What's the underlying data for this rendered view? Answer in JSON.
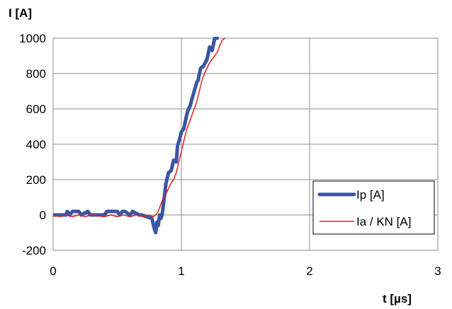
{
  "chart_data": {
    "type": "line",
    "ylabel": "I  [A]",
    "xlabel": "t  [µs]",
    "xlim": [
      0,
      3
    ],
    "ylim": [
      -200,
      1000
    ],
    "x_ticks": [
      0,
      1,
      2,
      3
    ],
    "y_ticks": [
      -200,
      0,
      200,
      400,
      600,
      800,
      1000
    ],
    "x_tick_labels": [
      "0",
      "1",
      "2",
      "3"
    ],
    "y_tick_labels": [
      "-200",
      "0",
      "200",
      "400",
      "600",
      "800",
      "1000"
    ],
    "grid": true,
    "legend_position": "bottom-right",
    "series": [
      {
        "name": "Ip  [A]",
        "color": "#3a55a4",
        "style": "thick",
        "x": [
          0,
          0.1,
          0.11,
          0.13,
          0.15,
          0.18,
          0.2,
          0.22,
          0.27,
          0.29,
          0.4,
          0.42,
          0.44,
          0.5,
          0.52,
          0.54,
          0.56,
          0.6,
          0.62,
          0.67,
          0.69,
          0.77,
          0.79,
          0.8,
          0.81,
          0.82,
          0.83,
          0.84,
          0.85,
          0.86,
          0.87,
          0.88,
          0.9,
          0.92,
          0.94,
          0.96,
          0.97,
          0.99,
          1.0,
          1.02,
          1.04,
          1.05,
          1.07,
          1.08,
          1.1,
          1.12,
          1.13,
          1.15,
          1.17,
          1.2,
          1.22,
          1.24,
          1.26,
          1.28
        ],
        "y": [
          0,
          0,
          20,
          0,
          20,
          20,
          20,
          0,
          20,
          0,
          0,
          20,
          20,
          20,
          0,
          20,
          20,
          0,
          20,
          0,
          0,
          -20,
          -80,
          -100,
          -40,
          -60,
          0,
          -20,
          0,
          60,
          120,
          180,
          240,
          250,
          310,
          300,
          390,
          440,
          470,
          490,
          560,
          590,
          620,
          650,
          700,
          750,
          760,
          830,
          840,
          880,
          950,
          930,
          1000,
          1000
        ]
      },
      {
        "name": "Ia / KN [A]",
        "color": "#e2231a",
        "style": "thin",
        "x": [
          0,
          0.05,
          0.1,
          0.15,
          0.2,
          0.25,
          0.3,
          0.4,
          0.45,
          0.5,
          0.55,
          0.6,
          0.65,
          0.7,
          0.75,
          0.78,
          0.8,
          0.82,
          0.84,
          0.86,
          0.88,
          0.9,
          0.92,
          0.94,
          0.96,
          0.98,
          1.0,
          1.02,
          1.04,
          1.06,
          1.08,
          1.1,
          1.12,
          1.14,
          1.16,
          1.18,
          1.2,
          1.22,
          1.24,
          1.26,
          1.28,
          1.3,
          1.32,
          1.34
        ],
        "y": [
          0,
          -10,
          0,
          -10,
          0,
          -10,
          0,
          -10,
          0,
          -10,
          0,
          -10,
          0,
          -10,
          0,
          -10,
          0,
          20,
          60,
          100,
          120,
          150,
          180,
          200,
          240,
          300,
          360,
          420,
          480,
          520,
          560,
          600,
          640,
          700,
          760,
          800,
          830,
          860,
          880,
          900,
          920,
          960,
          990,
          1000
        ]
      }
    ]
  }
}
